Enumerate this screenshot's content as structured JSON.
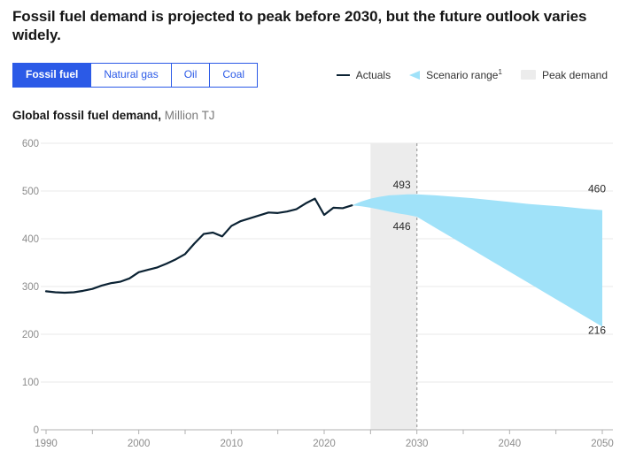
{
  "page": {
    "title": "Fossil fuel demand is projected to peak before 2030, but the future outlook varies widely."
  },
  "tabs": {
    "items": [
      {
        "label": "Fossil fuel",
        "selected": true
      },
      {
        "label": "Natural gas",
        "selected": false
      },
      {
        "label": "Oil",
        "selected": false
      },
      {
        "label": "Coal",
        "selected": false
      }
    ]
  },
  "legend": {
    "items": [
      {
        "label": "Actuals",
        "icon": "line-swatch"
      },
      {
        "label": "Scenario range",
        "sup": "1",
        "icon": "triangle-swatch"
      },
      {
        "label": "Peak demand",
        "icon": "band-swatch"
      }
    ]
  },
  "subtitle": {
    "title": "Global fossil fuel demand,",
    "unit": "Million TJ"
  },
  "colors": {
    "accent": "#2B5AE7",
    "fan": "#A0E2F9",
    "band": "#ECECEC",
    "line": "#0B2233",
    "grid": "#E8E8E8",
    "axis": "#B0B0B0",
    "muted": "#8C8C8C",
    "annotation": "#2A2A2A",
    "dashed": "#A6A6A6"
  },
  "chart_data": {
    "type": "line",
    "title": "Global fossil fuel demand",
    "ylabel": "Million TJ",
    "xlabel": "",
    "grid": "horizontal",
    "legend": {
      "position": "top-right",
      "entries": [
        "Actuals",
        "Scenario range",
        "Peak demand"
      ]
    },
    "x_axis": {
      "min": 1990,
      "max": 2050,
      "tick_step": 5,
      "labeled_ticks": [
        1990,
        2000,
        2010,
        2020,
        2030,
        2040,
        2050
      ]
    },
    "y_axis": {
      "min": 0,
      "max": 600,
      "ticks": [
        0,
        100,
        200,
        300,
        400,
        500,
        600
      ]
    },
    "series": [
      {
        "name": "Actuals",
        "type": "line",
        "x": [
          1990,
          1991,
          1992,
          1993,
          1994,
          1995,
          1996,
          1997,
          1998,
          1999,
          2000,
          2001,
          2002,
          2003,
          2004,
          2005,
          2006,
          2007,
          2008,
          2009,
          2010,
          2011,
          2012,
          2013,
          2014,
          2015,
          2016,
          2017,
          2018,
          2019,
          2020,
          2021,
          2022,
          2023
        ],
        "values": [
          290,
          288,
          287,
          288,
          291,
          295,
          302,
          307,
          310,
          317,
          330,
          335,
          340,
          348,
          357,
          368,
          390,
          410,
          413,
          405,
          427,
          437,
          443,
          449,
          455,
          454,
          457,
          462,
          474,
          484,
          450,
          465,
          464,
          470
        ]
      },
      {
        "name": "Scenario range",
        "type": "range",
        "x": [
          2023,
          2024,
          2025,
          2026,
          2027,
          2028,
          2029,
          2030,
          2032,
          2034,
          2036,
          2038,
          2040,
          2042,
          2044,
          2046,
          2048,
          2050
        ],
        "upper": [
          470,
          478,
          484,
          488,
          491,
          492,
          493,
          493,
          491,
          488,
          485,
          481,
          477,
          473,
          470,
          467,
          463,
          460
        ],
        "lower": [
          470,
          468,
          465,
          461,
          457,
          453,
          450,
          446,
          423,
          400,
          377,
          354,
          331,
          308,
          285,
          262,
          239,
          216
        ]
      }
    ],
    "peak_demand_band": {
      "start_year": 2025,
      "end_year": 2030,
      "dashed_line_year": 2030
    },
    "annotations": [
      {
        "text": "493",
        "year": 2030,
        "value": 493,
        "placement": "above-left"
      },
      {
        "text": "446",
        "year": 2030,
        "value": 446,
        "placement": "below-left"
      },
      {
        "text": "460",
        "year": 2050,
        "value": 460,
        "placement": "above-end"
      },
      {
        "text": "216",
        "year": 2050,
        "value": 216,
        "placement": "below-end"
      }
    ]
  }
}
